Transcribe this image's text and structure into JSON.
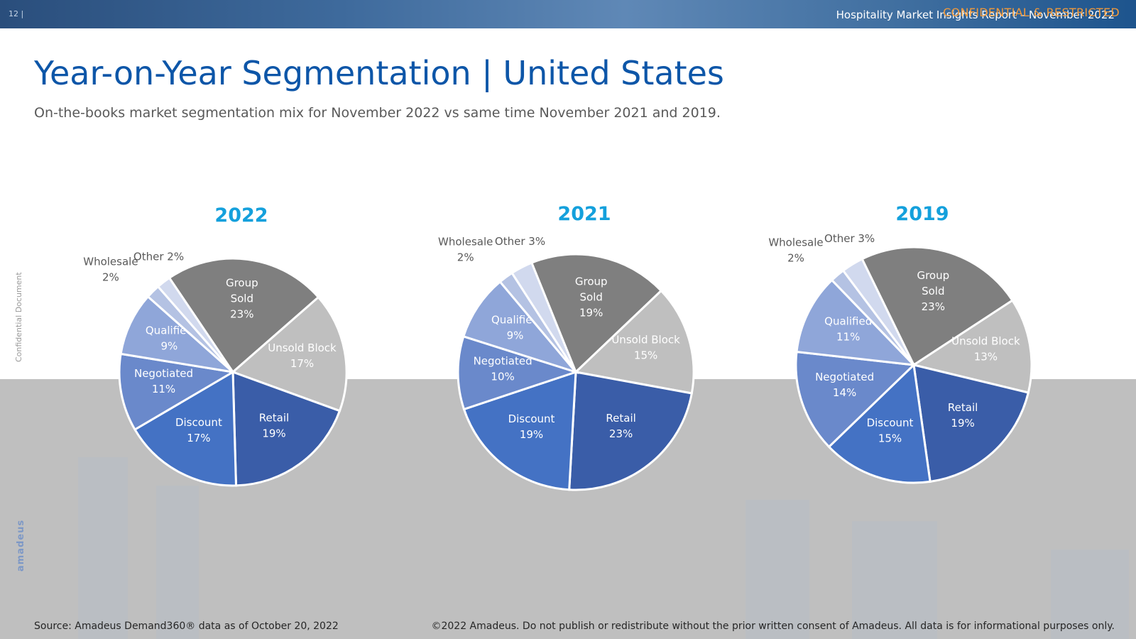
{
  "header": {
    "page_number": "12 |",
    "report_title": "Hospitality Market Insights Report – November 2022",
    "confidential": "CONFIDENTIAL & RESTRICTED"
  },
  "page": {
    "title": "Year-on-Year Segmentation | United States",
    "subtitle": "On-the-books market segmentation mix for November 2022 vs same time November 2021 and 2019."
  },
  "side": {
    "confidential_doc": "Confidential Document",
    "logo": "amadeus"
  },
  "footer": {
    "source": "Source: Amadeus Demand360® data as of October 20, 2022",
    "copyright": "©2022 Amadeus. Do not publish or redistribute without the prior written consent of Amadeus. All data is for informational purposes only."
  },
  "colors": {
    "Group Sold": "#7f7f7f",
    "Unsold Block": "#bfbfbf",
    "Retail": "#3a5da8",
    "Discount": "#4472c4",
    "Negotiated": "#6a89cb",
    "Qualified": "#8fa6d9",
    "Wholesale": "#b4c2e3",
    "Other": "#d1d9ee",
    "year_title": "#14a0dc",
    "inside_label": "#ffffff",
    "outside_label": "#595959"
  },
  "chart_data": [
    {
      "type": "pie",
      "title": "2022",
      "slices": [
        {
          "name": "Group Sold",
          "value": 23,
          "label": [
            "Group",
            "Sold",
            "23%"
          ]
        },
        {
          "name": "Unsold Block",
          "value": 17,
          "label": [
            "Unsold Block",
            "17%"
          ]
        },
        {
          "name": "Retail",
          "value": 19,
          "label": [
            "Retail",
            "19%"
          ]
        },
        {
          "name": "Discount",
          "value": 17,
          "label": [
            "Discount",
            "17%"
          ]
        },
        {
          "name": "Negotiated",
          "value": 11,
          "label": [
            "Negotiated",
            "11%"
          ]
        },
        {
          "name": "Qualified",
          "value": 9,
          "label": [
            "Qualified",
            "9%"
          ]
        },
        {
          "name": "Wholesale",
          "value": 2,
          "label": [
            "Wholesale",
            "2%"
          ]
        },
        {
          "name": "Other",
          "value": 2,
          "label": [
            "Other 2%"
          ]
        }
      ]
    },
    {
      "type": "pie",
      "title": "2021",
      "slices": [
        {
          "name": "Group Sold",
          "value": 19,
          "label": [
            "Group",
            "Sold",
            "19%"
          ]
        },
        {
          "name": "Unsold Block",
          "value": 15,
          "label": [
            "Unsold Block",
            "15%"
          ]
        },
        {
          "name": "Retail",
          "value": 23,
          "label": [
            "Retail",
            "23%"
          ]
        },
        {
          "name": "Discount",
          "value": 19,
          "label": [
            "Discount",
            "19%"
          ]
        },
        {
          "name": "Negotiated",
          "value": 10,
          "label": [
            "Negotiated",
            "10%"
          ]
        },
        {
          "name": "Qualified",
          "value": 9,
          "label": [
            "Qualified",
            "9%"
          ]
        },
        {
          "name": "Wholesale",
          "value": 2,
          "label": [
            "Wholesale",
            "2%"
          ]
        },
        {
          "name": "Other",
          "value": 3,
          "label": [
            "Other 3%"
          ]
        }
      ]
    },
    {
      "type": "pie",
      "title": "2019",
      "slices": [
        {
          "name": "Group Sold",
          "value": 23,
          "label": [
            "Group",
            "Sold",
            "23%"
          ]
        },
        {
          "name": "Unsold Block",
          "value": 13,
          "label": [
            "Unsold Block",
            "13%"
          ]
        },
        {
          "name": "Retail",
          "value": 19,
          "label": [
            "Retail",
            "19%"
          ]
        },
        {
          "name": "Discount",
          "value": 15,
          "label": [
            "Discount",
            "15%"
          ]
        },
        {
          "name": "Negotiated",
          "value": 14,
          "label": [
            "Negotiated",
            "14%"
          ]
        },
        {
          "name": "Qualified",
          "value": 11,
          "label": [
            "Qualified",
            "11%"
          ]
        },
        {
          "name": "Wholesale",
          "value": 2,
          "label": [
            "Wholesale",
            "2%"
          ]
        },
        {
          "name": "Other",
          "value": 3,
          "label": [
            "Other 3%"
          ]
        }
      ]
    }
  ]
}
